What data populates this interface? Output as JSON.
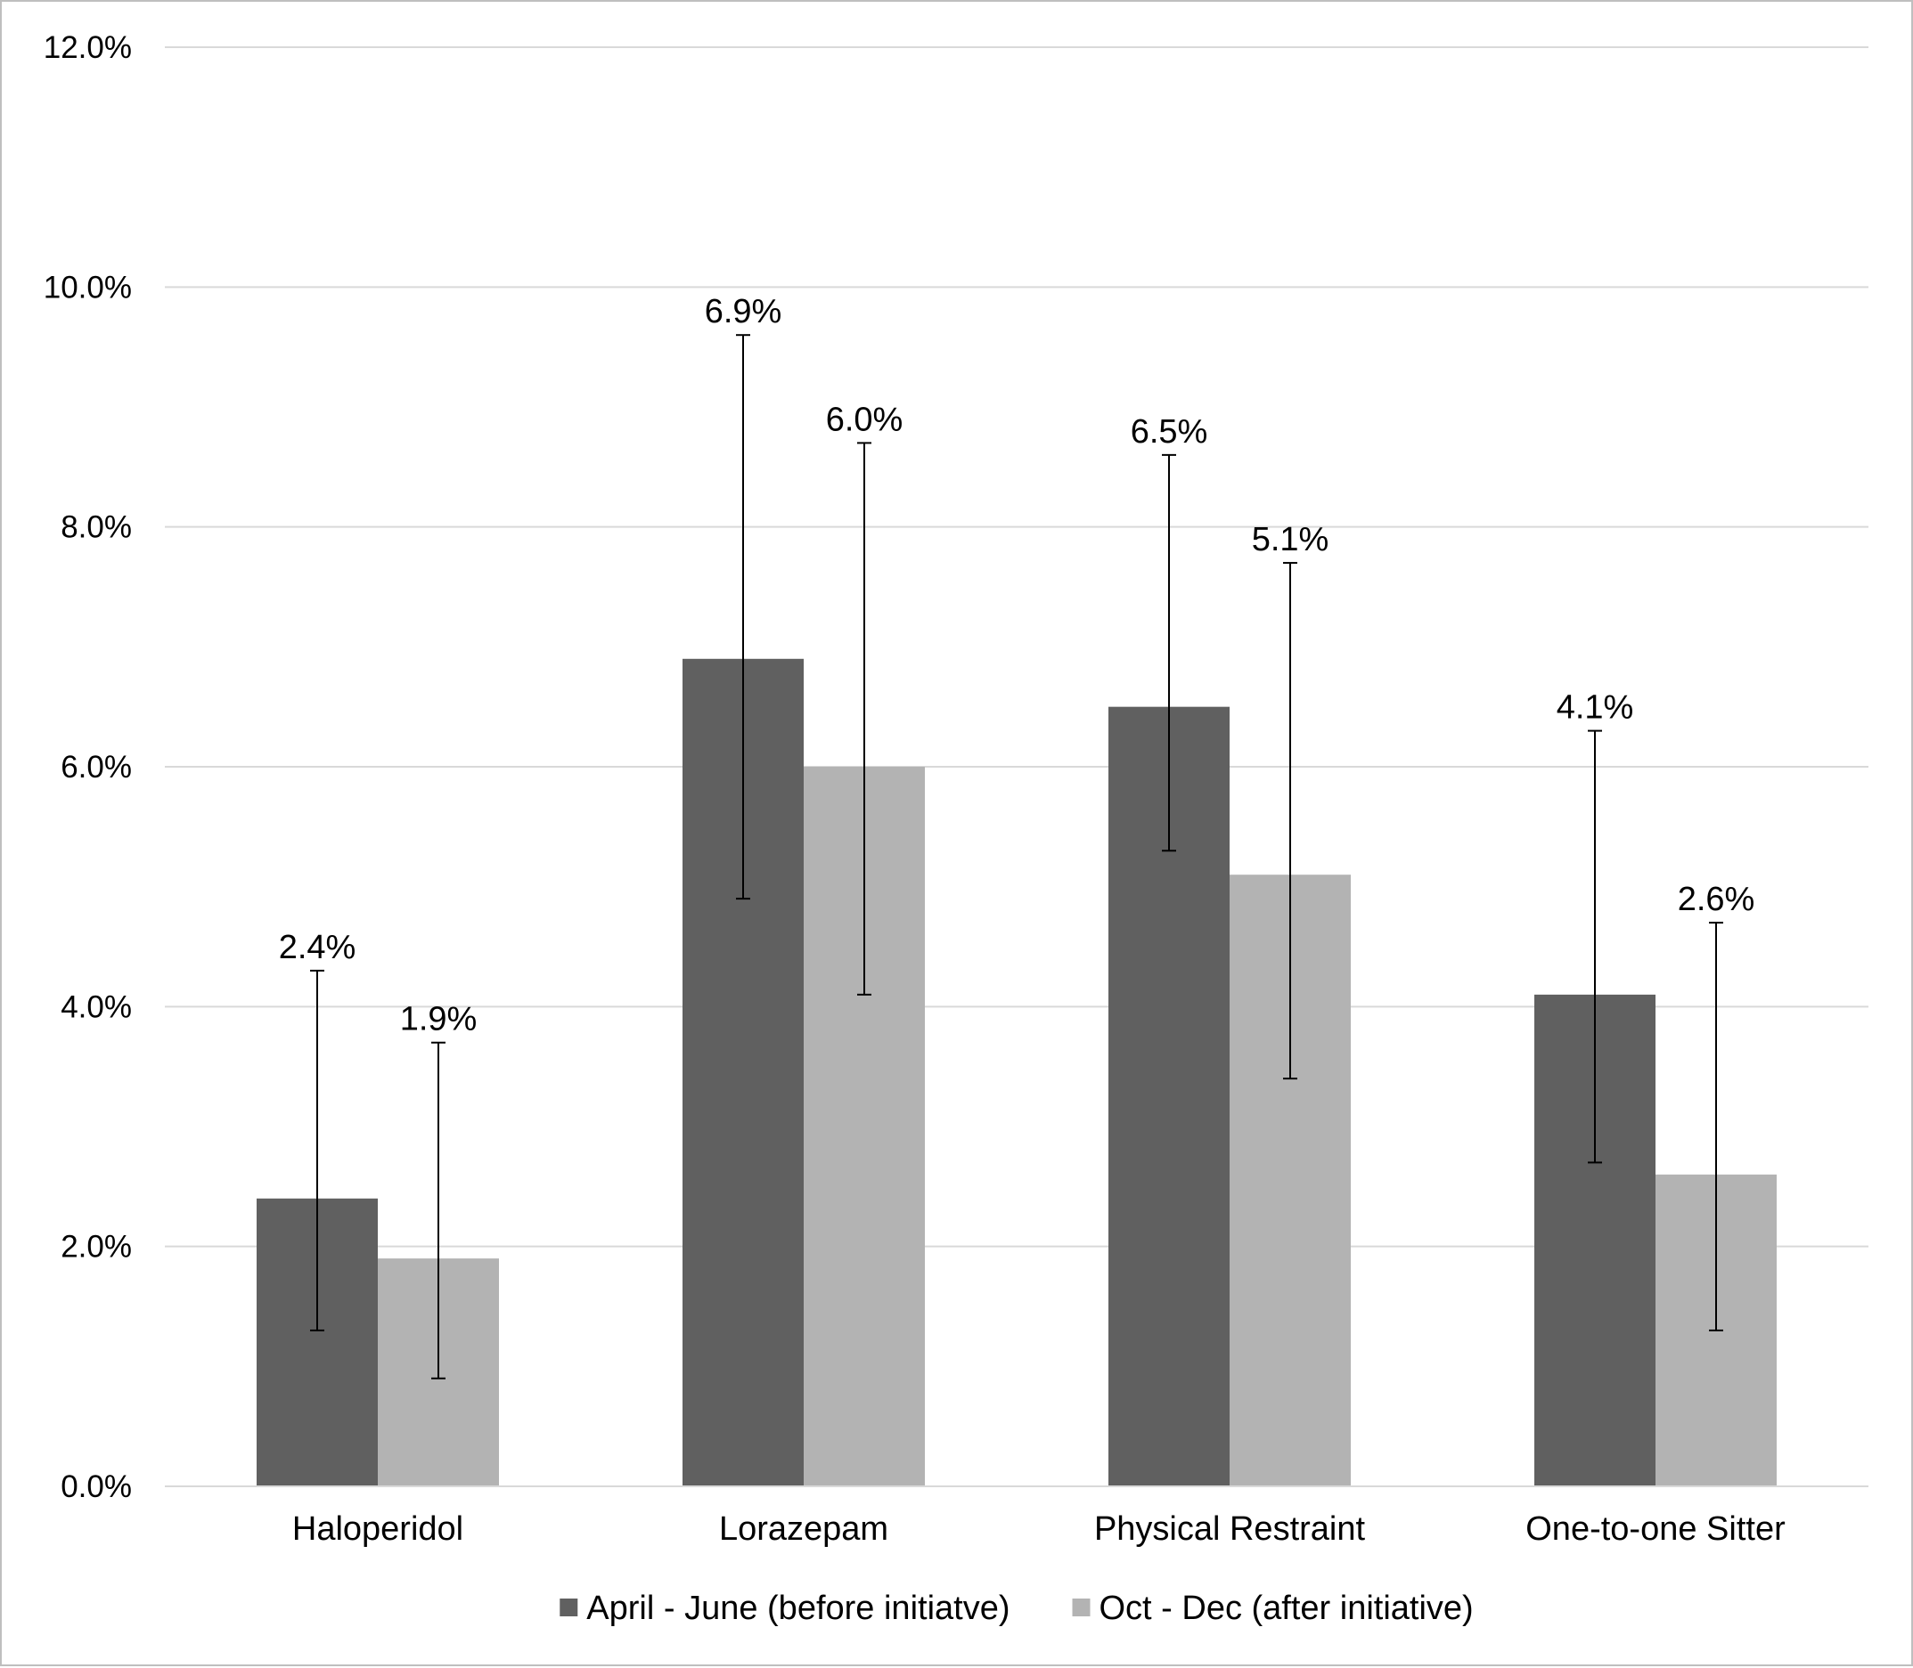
{
  "chart_data": {
    "type": "bar",
    "categories": [
      "Haloperidol",
      "Lorazepam",
      "Physical Restraint",
      "One-to-one Sitter"
    ],
    "series": [
      {
        "name": "April - June (before initiatve)",
        "color": "#606060",
        "values": [
          2.4,
          6.9,
          6.5,
          4.1
        ],
        "labels": [
          "2.4%",
          "6.9%",
          "6.5%",
          "4.1%"
        ],
        "error_low": [
          1.3,
          4.9,
          5.3,
          2.7
        ],
        "error_high": [
          4.3,
          9.6,
          8.6,
          6.3
        ]
      },
      {
        "name": "Oct - Dec (after initiative)",
        "color": "#b3b3b3",
        "values": [
          1.9,
          6.0,
          5.1,
          2.6
        ],
        "labels": [
          "1.9%",
          "6.0%",
          "5.1%",
          "2.6%"
        ],
        "error_low": [
          0.9,
          4.1,
          3.4,
          1.3
        ],
        "error_high": [
          3.7,
          8.7,
          7.7,
          4.7
        ]
      }
    ],
    "y_ticks": [
      0,
      2,
      4,
      6,
      8,
      10,
      12
    ],
    "y_tick_labels": [
      "0.0%",
      "2.0%",
      "4.0%",
      "6.0%",
      "8.0%",
      "10.0%",
      "12.0%"
    ],
    "ylim": [
      0,
      12
    ],
    "grid": true,
    "gridline_color": "#d9d9d9",
    "legend_position": "bottom",
    "title": "",
    "xlabel": "",
    "ylabel": ""
  }
}
